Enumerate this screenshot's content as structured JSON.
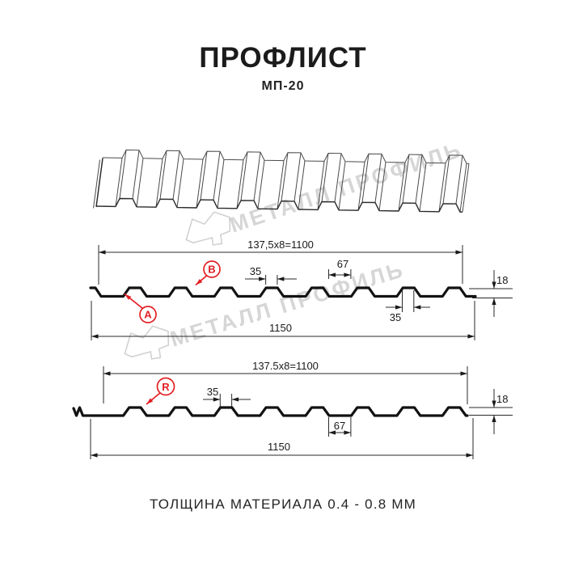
{
  "header": {
    "title": "ПРОФЛИСТ",
    "subtitle": "МП-20"
  },
  "footer": {
    "note": "ТОЛЩИНА МАТЕРИАЛА 0.4 - 0.8 ММ"
  },
  "watermark": {
    "text": "МЕТАЛЛ ПРОФИЛЬ"
  },
  "colors": {
    "accent_red": "#e31e24",
    "line_color": "#1a1a1a",
    "watermark_gray": "rgba(0,0,0,0.16)"
  },
  "section_a": {
    "module_dim": "137,5x8=1100",
    "overall_dim": "1150",
    "rib_top_width": "35",
    "rib_top_width_bottom": "35",
    "valley_width": "67",
    "profile_height": "18",
    "label_a": "A",
    "label_b": "B"
  },
  "section_r": {
    "module_dim": "137.5x8=1100",
    "overall_dim": "1150",
    "rib_top_width": "35",
    "valley_width": "67",
    "profile_height": "18",
    "label_r": "R"
  }
}
